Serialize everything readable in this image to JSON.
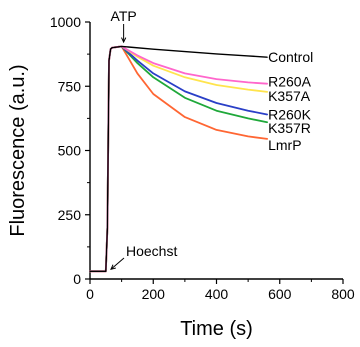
{
  "chart_data": {
    "type": "line",
    "title": "",
    "xlabel": "Time (s)",
    "ylabel": "Fluorescence (a.u.)",
    "xlim": [
      0,
      800
    ],
    "ylim": [
      0,
      1000
    ],
    "xticks": [
      "0",
      "200",
      "400",
      "600",
      "800"
    ],
    "yticks": [
      "0",
      "250",
      "500",
      "750",
      "1000"
    ],
    "grid": false,
    "legend": "inline labels at right end of each line",
    "annotations": [
      {
        "text": "ATP",
        "x": 100,
        "y": 910
      },
      {
        "text": "Hoechst",
        "x": 60,
        "y": 30
      }
    ],
    "series": [
      {
        "name": "Control",
        "color": "#000000",
        "x": [
          0,
          50,
          55,
          60,
          65,
          70,
          100,
          200,
          300,
          400,
          500,
          560
        ],
        "values": [
          30,
          30,
          200,
          850,
          895,
          900,
          905,
          894,
          885,
          876,
          868,
          863
        ]
      },
      {
        "name": "R260A",
        "color": "#ff66cc",
        "x": [
          0,
          50,
          55,
          60,
          65,
          70,
          100,
          150,
          200,
          300,
          400,
          500,
          560
        ],
        "values": [
          30,
          30,
          200,
          850,
          895,
          900,
          905,
          870,
          840,
          800,
          778,
          765,
          760
        ]
      },
      {
        "name": "K357A",
        "color": "#ffe44d",
        "x": [
          0,
          50,
          55,
          60,
          65,
          70,
          100,
          150,
          200,
          300,
          400,
          500,
          560
        ],
        "values": [
          30,
          30,
          200,
          850,
          895,
          900,
          905,
          865,
          830,
          785,
          755,
          737,
          728
        ]
      },
      {
        "name": "R260K",
        "color": "#2a3fc7",
        "x": [
          0,
          50,
          55,
          60,
          65,
          70,
          100,
          150,
          200,
          300,
          400,
          500,
          560
        ],
        "values": [
          30,
          30,
          200,
          850,
          895,
          900,
          905,
          850,
          800,
          730,
          685,
          655,
          640
        ]
      },
      {
        "name": "K357R",
        "color": "#1fa83a",
        "x": [
          0,
          50,
          55,
          60,
          65,
          70,
          100,
          150,
          200,
          300,
          400,
          500,
          560
        ],
        "values": [
          30,
          30,
          200,
          850,
          895,
          900,
          905,
          840,
          785,
          705,
          655,
          625,
          610
        ]
      },
      {
        "name": "LmrP",
        "color": "#ff6633",
        "x": [
          0,
          50,
          55,
          60,
          65,
          70,
          100,
          150,
          200,
          300,
          400,
          500,
          560
        ],
        "values": [
          30,
          30,
          200,
          850,
          895,
          900,
          905,
          800,
          720,
          630,
          580,
          555,
          545
        ]
      }
    ]
  }
}
